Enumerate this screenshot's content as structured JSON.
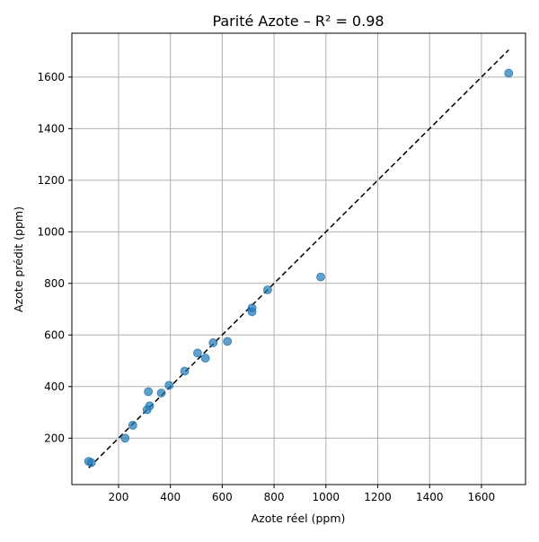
{
  "chart_data": {
    "type": "scatter",
    "title": "Parité Azote – R² = 0.98",
    "xlabel": "Azote réel (ppm)",
    "ylabel": "Azote prédit (ppm)",
    "xlim": [
      20,
      1770
    ],
    "ylim": [
      20,
      1770
    ],
    "xticks": [
      200,
      400,
      600,
      800,
      1000,
      1200,
      1400,
      1600
    ],
    "yticks": [
      200,
      400,
      600,
      800,
      1000,
      1200,
      1400,
      1600
    ],
    "grid": true,
    "points": [
      {
        "x": 85,
        "y": 110
      },
      {
        "x": 95,
        "y": 105
      },
      {
        "x": 225,
        "y": 200
      },
      {
        "x": 255,
        "y": 250
      },
      {
        "x": 310,
        "y": 310
      },
      {
        "x": 320,
        "y": 325
      },
      {
        "x": 315,
        "y": 380
      },
      {
        "x": 365,
        "y": 375
      },
      {
        "x": 395,
        "y": 405
      },
      {
        "x": 455,
        "y": 460
      },
      {
        "x": 505,
        "y": 530
      },
      {
        "x": 535,
        "y": 510
      },
      {
        "x": 565,
        "y": 570
      },
      {
        "x": 620,
        "y": 575
      },
      {
        "x": 715,
        "y": 705
      },
      {
        "x": 715,
        "y": 690
      },
      {
        "x": 775,
        "y": 775
      },
      {
        "x": 980,
        "y": 825
      },
      {
        "x": 1705,
        "y": 1615
      }
    ],
    "reference_line": {
      "x": [
        85,
        1705
      ],
      "y": [
        85,
        1705
      ],
      "style": "dashed"
    }
  },
  "colors": {
    "point": "#1f77b4",
    "reference_line": "#000000",
    "grid": "#b0b0b0",
    "axis": "#000000"
  }
}
